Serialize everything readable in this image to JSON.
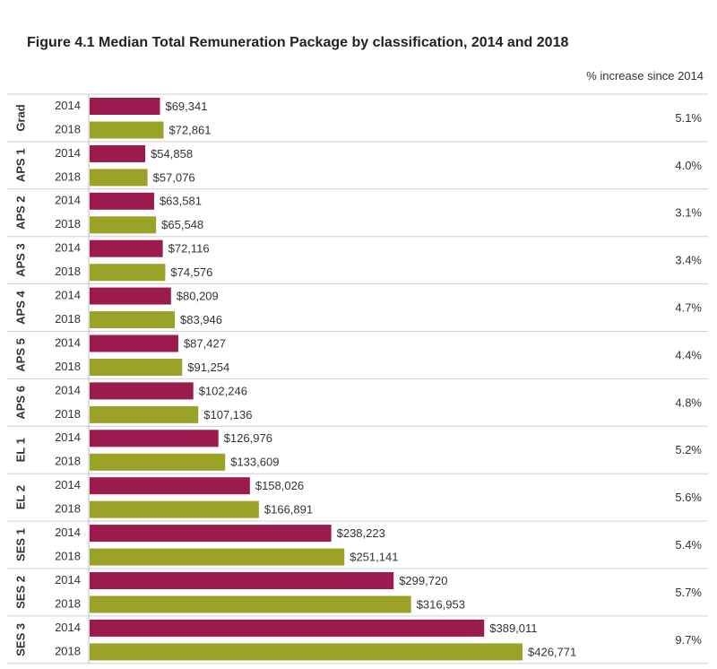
{
  "chart_data": {
    "type": "bar",
    "orientation": "horizontal",
    "title": "Figure 4.1 Median Total Remuneration Package by classification, 2014 and 2018",
    "increase_header": "% increase since 2014",
    "colors": {
      "2014": "#9b1b4f",
      "2018": "#9aa328",
      "divider": "#cfcfcf",
      "axis": "#bdbdbd"
    },
    "xlim": [
      0,
      426771
    ],
    "groups": [
      {
        "classification": "Grad",
        "rows": [
          {
            "year": "2014",
            "value": 69341,
            "label": "$69,341"
          },
          {
            "year": "2018",
            "value": 72861,
            "label": "$72,861"
          }
        ],
        "increase": "5.1%"
      },
      {
        "classification": "APS 1",
        "rows": [
          {
            "year": "2014",
            "value": 54858,
            "label": "$54,858"
          },
          {
            "year": "2018",
            "value": 57076,
            "label": "$57,076"
          }
        ],
        "increase": "4.0%"
      },
      {
        "classification": "APS 2",
        "rows": [
          {
            "year": "2014",
            "value": 63581,
            "label": "$63,581"
          },
          {
            "year": "2018",
            "value": 65548,
            "label": "$65,548"
          }
        ],
        "increase": "3.1%"
      },
      {
        "classification": "APS 3",
        "rows": [
          {
            "year": "2014",
            "value": 72116,
            "label": "$72,116"
          },
          {
            "year": "2018",
            "value": 74576,
            "label": "$74,576"
          }
        ],
        "increase": "3.4%"
      },
      {
        "classification": "APS 4",
        "rows": [
          {
            "year": "2014",
            "value": 80209,
            "label": "$80,209"
          },
          {
            "year": "2018",
            "value": 83946,
            "label": "$83,946"
          }
        ],
        "increase": "4.7%"
      },
      {
        "classification": "APS 5",
        "rows": [
          {
            "year": "2014",
            "value": 87427,
            "label": "$87,427"
          },
          {
            "year": "2018",
            "value": 91254,
            "label": "$91,254"
          }
        ],
        "increase": "4.4%"
      },
      {
        "classification": "APS 6",
        "rows": [
          {
            "year": "2014",
            "value": 102246,
            "label": "$102,246"
          },
          {
            "year": "2018",
            "value": 107136,
            "label": "$107,136"
          }
        ],
        "increase": "4.8%"
      },
      {
        "classification": "EL 1",
        "rows": [
          {
            "year": "2014",
            "value": 126976,
            "label": "$126,976"
          },
          {
            "year": "2018",
            "value": 133609,
            "label": "$133,609"
          }
        ],
        "increase": "5.2%"
      },
      {
        "classification": "EL 2",
        "rows": [
          {
            "year": "2014",
            "value": 158026,
            "label": "$158,026"
          },
          {
            "year": "2018",
            "value": 166891,
            "label": "$166,891"
          }
        ],
        "increase": "5.6%"
      },
      {
        "classification": "SES 1",
        "rows": [
          {
            "year": "2014",
            "value": 238223,
            "label": "$238,223"
          },
          {
            "year": "2018",
            "value": 251141,
            "label": "$251,141"
          }
        ],
        "increase": "5.4%"
      },
      {
        "classification": "SES 2",
        "rows": [
          {
            "year": "2014",
            "value": 299720,
            "label": "$299,720"
          },
          {
            "year": "2018",
            "value": 316953,
            "label": "$316,953"
          }
        ],
        "increase": "5.7%"
      },
      {
        "classification": "SES 3",
        "rows": [
          {
            "year": "2014",
            "value": 389011,
            "label": "$389,011"
          },
          {
            "year": "2018",
            "value": 426771,
            "label": "$426,771"
          }
        ],
        "increase": "9.7%"
      }
    ]
  }
}
